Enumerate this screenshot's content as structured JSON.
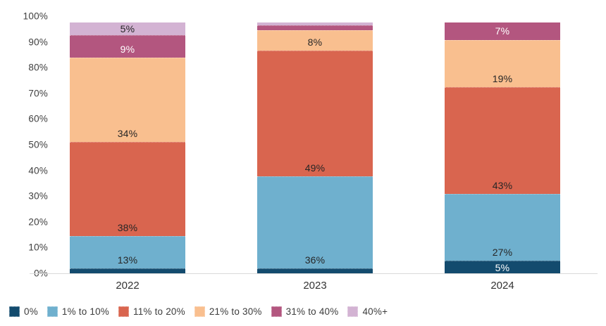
{
  "chart_data": {
    "type": "bar",
    "variant": "stacked-100",
    "title": "",
    "categories": [
      "2022",
      "2023",
      "2024"
    ],
    "series": [
      {
        "name": "0%",
        "color": "#134b6e",
        "label_color": "#ffffff",
        "values": [
          2,
          2,
          5
        ],
        "labels": [
          null,
          null,
          "5%"
        ]
      },
      {
        "name": "1% to 10%",
        "color": "#6fb0ce",
        "label_color": "#262626",
        "values": [
          13,
          36,
          27
        ],
        "labels": [
          "13%",
          "36%",
          "27%"
        ]
      },
      {
        "name": "11% to 20%",
        "color": "#d9654f",
        "label_color": "#262626",
        "values": [
          38,
          49,
          43
        ],
        "labels": [
          "38%",
          "49%",
          "43%"
        ]
      },
      {
        "name": "21% to 30%",
        "color": "#f9bf8f",
        "label_color": "#262626",
        "values": [
          34,
          8,
          19
        ],
        "labels": [
          "34%",
          "8%",
          "19%"
        ]
      },
      {
        "name": "31% to 40%",
        "color": "#b3567f",
        "label_color": "#ffffff",
        "values": [
          9,
          2,
          7
        ],
        "labels": [
          "9%",
          null,
          "7%"
        ]
      },
      {
        "name": "40%+",
        "color": "#d3b3d3",
        "label_color": "#262626",
        "values": [
          5,
          1,
          0
        ],
        "labels": [
          "5%",
          null,
          null
        ]
      }
    ],
    "y_axis": {
      "ticks": [
        "100%",
        "90%",
        "80%",
        "70%",
        "60%",
        "50%",
        "40%",
        "30%",
        "20%",
        "10%",
        "0%"
      ],
      "min": 0,
      "max": 100,
      "unit": "%"
    },
    "x_axis": {
      "ticks": [
        "2022",
        "2023",
        "2024"
      ]
    },
    "legend": {
      "position": "bottom",
      "items": [
        "0%",
        "1% to 10%",
        "11% to 20%",
        "21% to 30%",
        "31% to 40%",
        "40%+"
      ]
    },
    "grid": false
  }
}
